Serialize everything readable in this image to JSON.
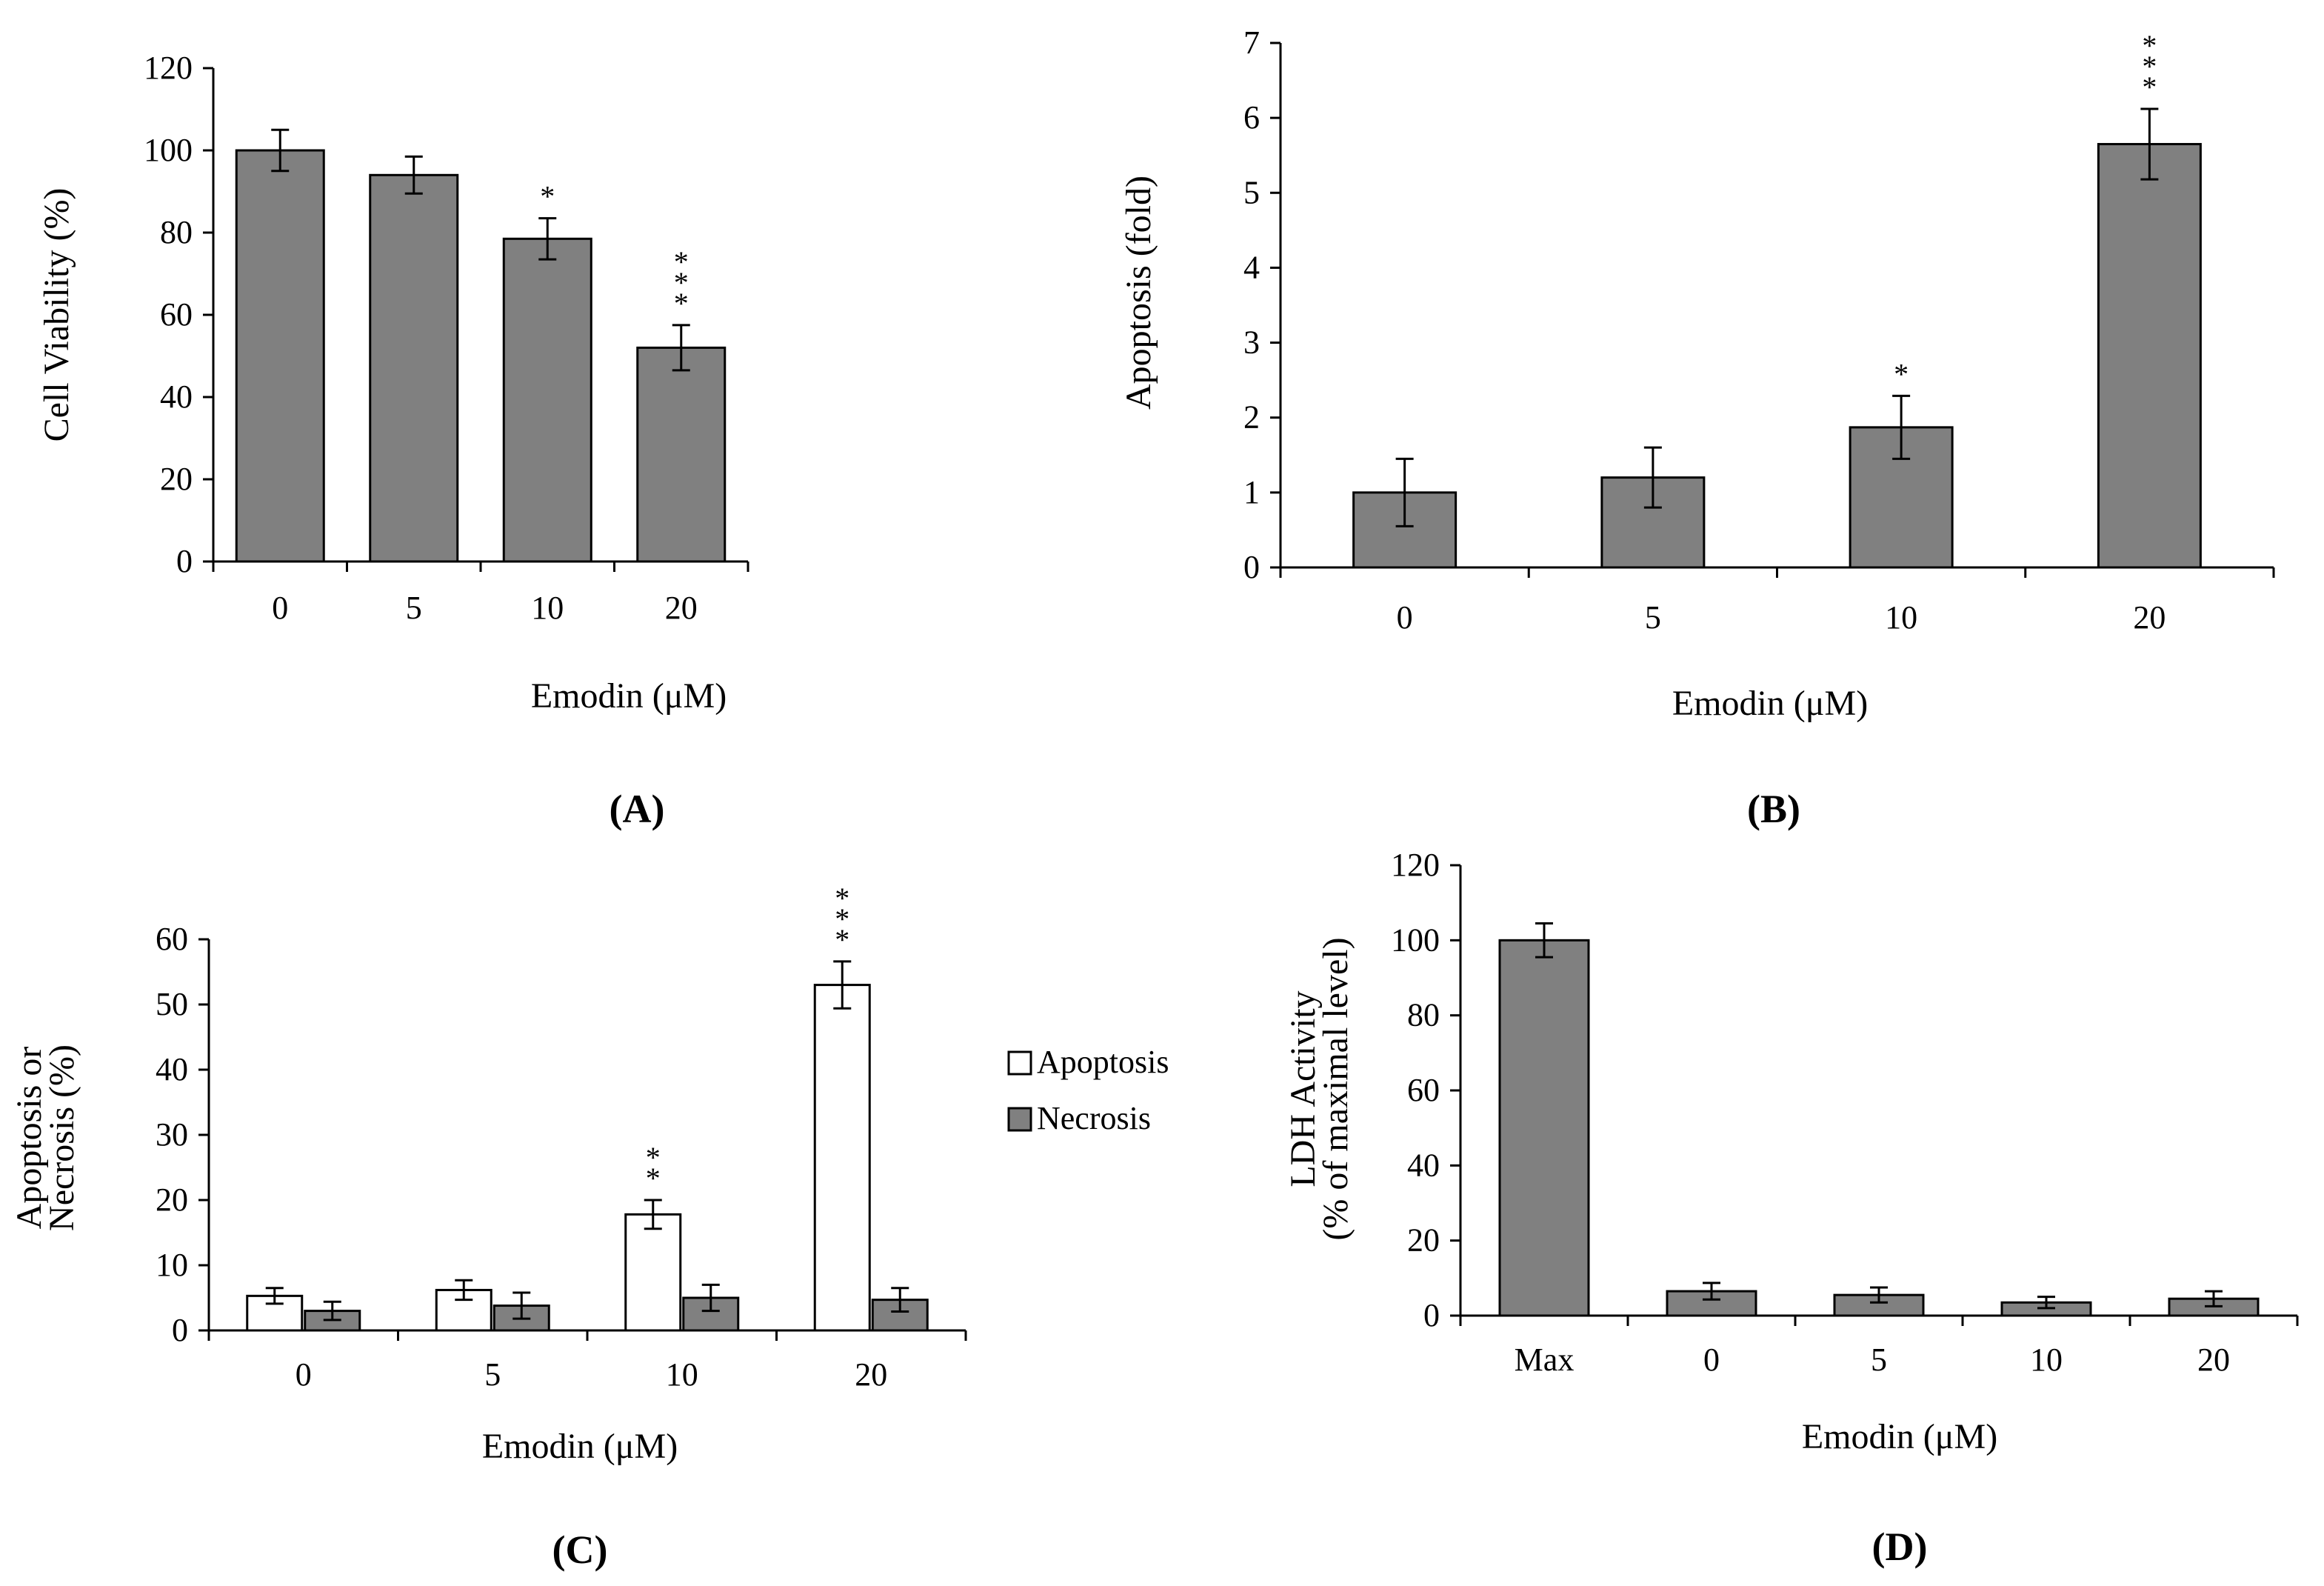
{
  "figure_title": "",
  "chart_data": [
    {
      "panel": "A",
      "panel_label": "(A)",
      "type": "bar",
      "title": "",
      "xlabel": "Emodin (μM)",
      "ylabel": "Cell Viability (%)",
      "categories": [
        "0",
        "5",
        "10",
        "20"
      ],
      "ylim": [
        0,
        120
      ],
      "yticks": [
        0,
        20,
        40,
        60,
        80,
        100,
        120
      ],
      "series": [
        {
          "name": "Cell Viability",
          "color": "#808080",
          "values": [
            100,
            94,
            78.5,
            52
          ],
          "errors": [
            5,
            4.5,
            5,
            5.5
          ],
          "significance": [
            "",
            "",
            "*",
            "***"
          ]
        }
      ],
      "legend": []
    },
    {
      "panel": "B",
      "panel_label": "(B)",
      "type": "bar",
      "title": "",
      "xlabel": "Emodin (μM)",
      "ylabel": "Apoptosis (fold)",
      "categories": [
        "0",
        "5",
        "10",
        "20"
      ],
      "ylim": [
        0,
        7
      ],
      "yticks": [
        0,
        1,
        2,
        3,
        4,
        5,
        6,
        7
      ],
      "series": [
        {
          "name": "Apoptosis",
          "color": "#808080",
          "values": [
            1.0,
            1.2,
            1.87,
            5.65
          ],
          "errors": [
            0.45,
            0.4,
            0.42,
            0.47
          ],
          "significance": [
            "",
            "",
            "*",
            "***"
          ]
        }
      ],
      "legend": []
    },
    {
      "panel": "C",
      "panel_label": "(C)",
      "type": "bar",
      "title": "",
      "xlabel": "Emodin (μM)",
      "ylabel_lines": [
        "Apoptosis or",
        "Necrosis (%)"
      ],
      "categories": [
        "0",
        "5",
        "10",
        "20"
      ],
      "ylim": [
        0,
        60
      ],
      "yticks": [
        0,
        10,
        20,
        30,
        40,
        50,
        60
      ],
      "series": [
        {
          "name": "Apoptosis",
          "color": "#ffffff",
          "values": [
            5.3,
            6.2,
            17.8,
            53
          ],
          "errors": [
            1.2,
            1.5,
            2.2,
            3.6
          ],
          "significance": [
            "",
            "",
            "**",
            "***"
          ]
        },
        {
          "name": "Necrosis",
          "color": "#808080",
          "values": [
            3.0,
            3.8,
            5.0,
            4.7
          ],
          "errors": [
            1.4,
            2.0,
            2.0,
            1.8
          ],
          "significance": [
            "",
            "",
            "",
            ""
          ]
        }
      ],
      "legend": [
        "Apoptosis",
        "Necrosis"
      ],
      "legend_position": "right"
    },
    {
      "panel": "D",
      "panel_label": "(D)",
      "type": "bar",
      "title": "",
      "xlabel": "Emodin (μM)",
      "ylabel_lines": [
        "LDH Activity",
        "(% of maximal level)"
      ],
      "categories": [
        "Max",
        "0",
        "5",
        "10",
        "20"
      ],
      "ylim": [
        0,
        120
      ],
      "yticks": [
        0,
        20,
        40,
        60,
        80,
        100,
        120
      ],
      "series": [
        {
          "name": "LDH Activity",
          "color": "#808080",
          "values": [
            100,
            6.5,
            5.5,
            3.5,
            4.5
          ],
          "errors": [
            4.5,
            2.2,
            2.0,
            1.5,
            2.0
          ],
          "significance": [
            "",
            "",
            "",
            "",
            ""
          ]
        }
      ],
      "legend": []
    }
  ]
}
